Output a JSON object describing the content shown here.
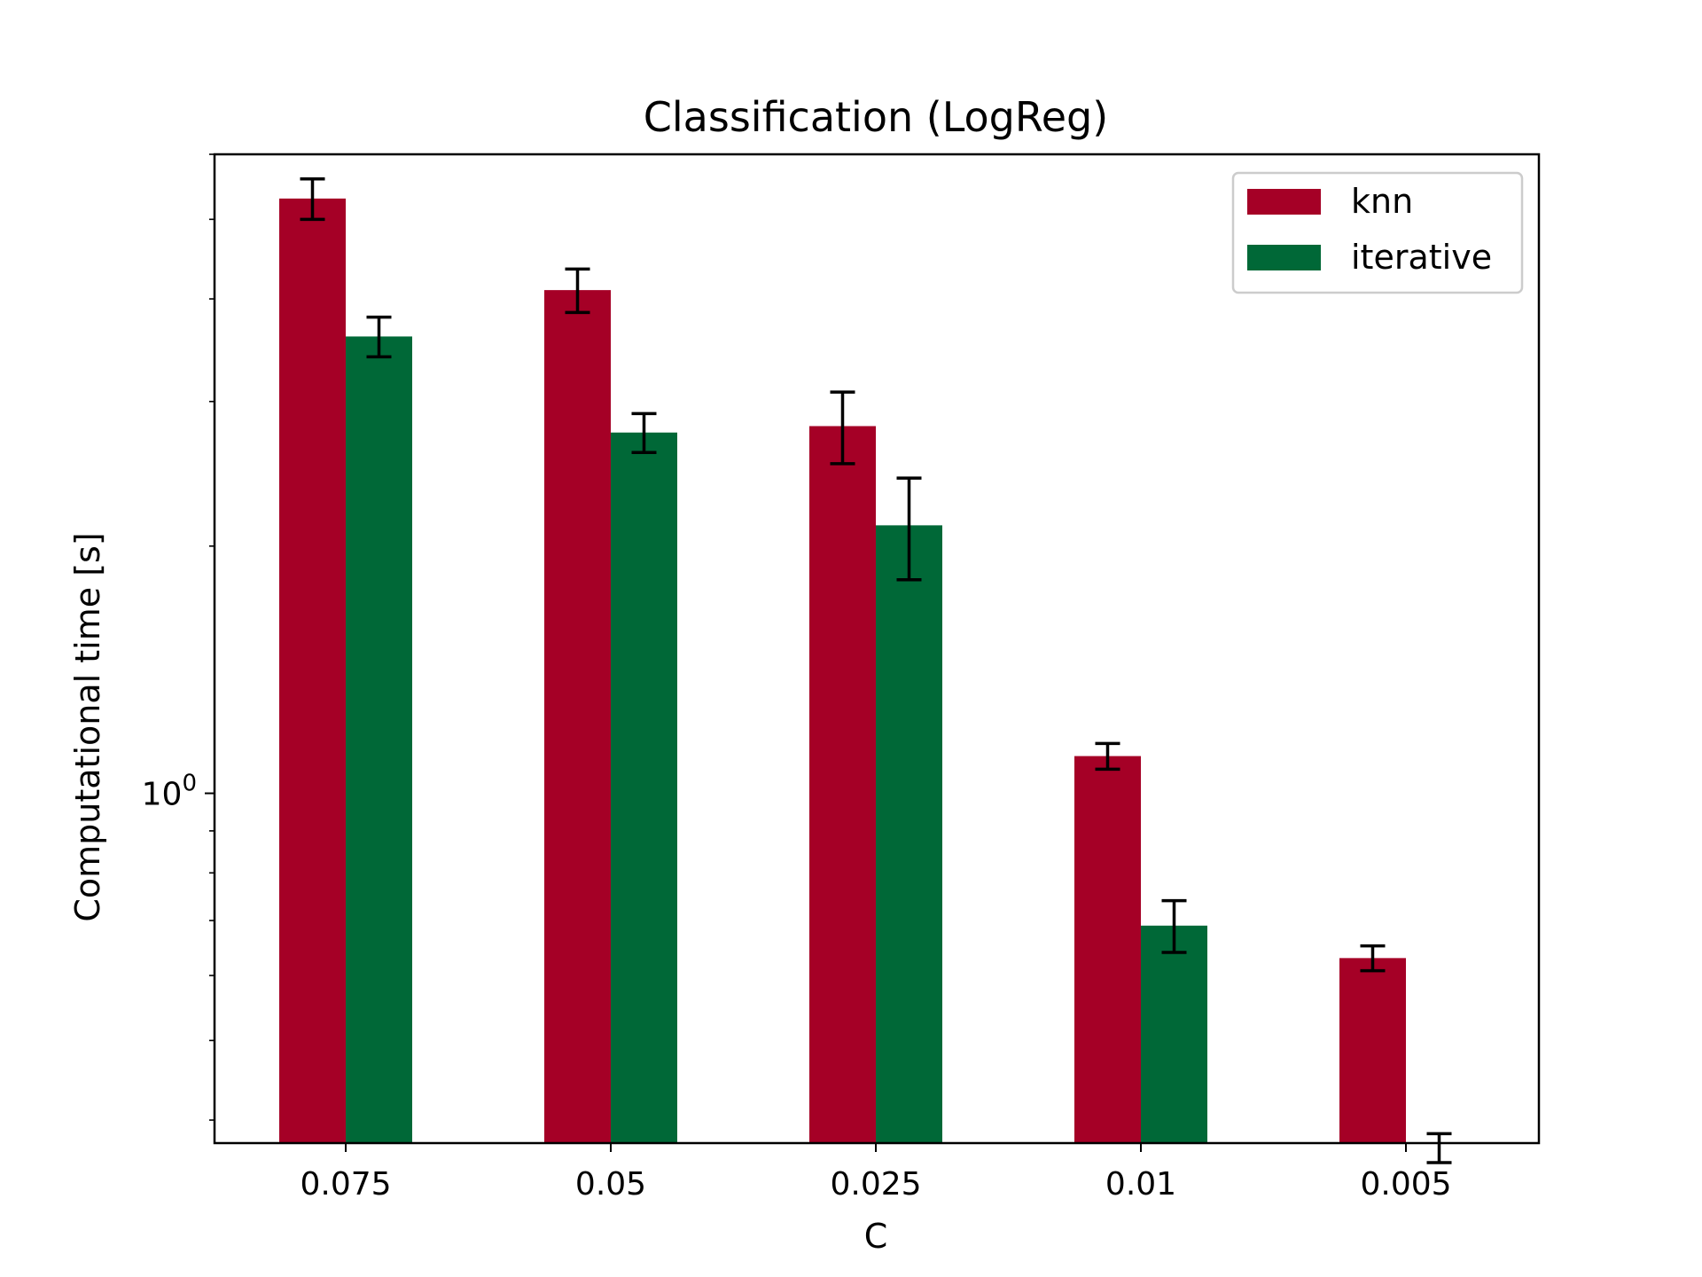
{
  "chart_data": {
    "type": "bar",
    "title": "Classification (LogReg)",
    "xlabel": "C",
    "ylabel": "Computational time [s]",
    "yscale": "log",
    "ylim": [
      0.375,
      6.0
    ],
    "y_ticks": [
      {
        "value": 1.0,
        "base": "10",
        "exp": "0"
      }
    ],
    "categories": [
      "0.075",
      "0.05",
      "0.025",
      "0.01",
      "0.005"
    ],
    "series": [
      {
        "name": "knn",
        "color": "#a50026",
        "values": [
          5.3,
          4.1,
          2.8,
          1.11,
          0.63
        ],
        "err_low": [
          0.3,
          0.25,
          0.28,
          0.04,
          0.022
        ],
        "err_high": [
          0.3,
          0.25,
          0.28,
          0.04,
          0.022
        ]
      },
      {
        "name": "iterative",
        "color": "#006837",
        "values": [
          3.6,
          2.75,
          2.12,
          0.69,
          0.37
        ],
        "err_low": [
          0.2,
          0.15,
          0.3,
          0.05,
          0.015
        ],
        "err_high": [
          0.2,
          0.15,
          0.3,
          0.05,
          0.015
        ]
      }
    ],
    "legend": {
      "position": "top-right"
    },
    "grid": false
  }
}
